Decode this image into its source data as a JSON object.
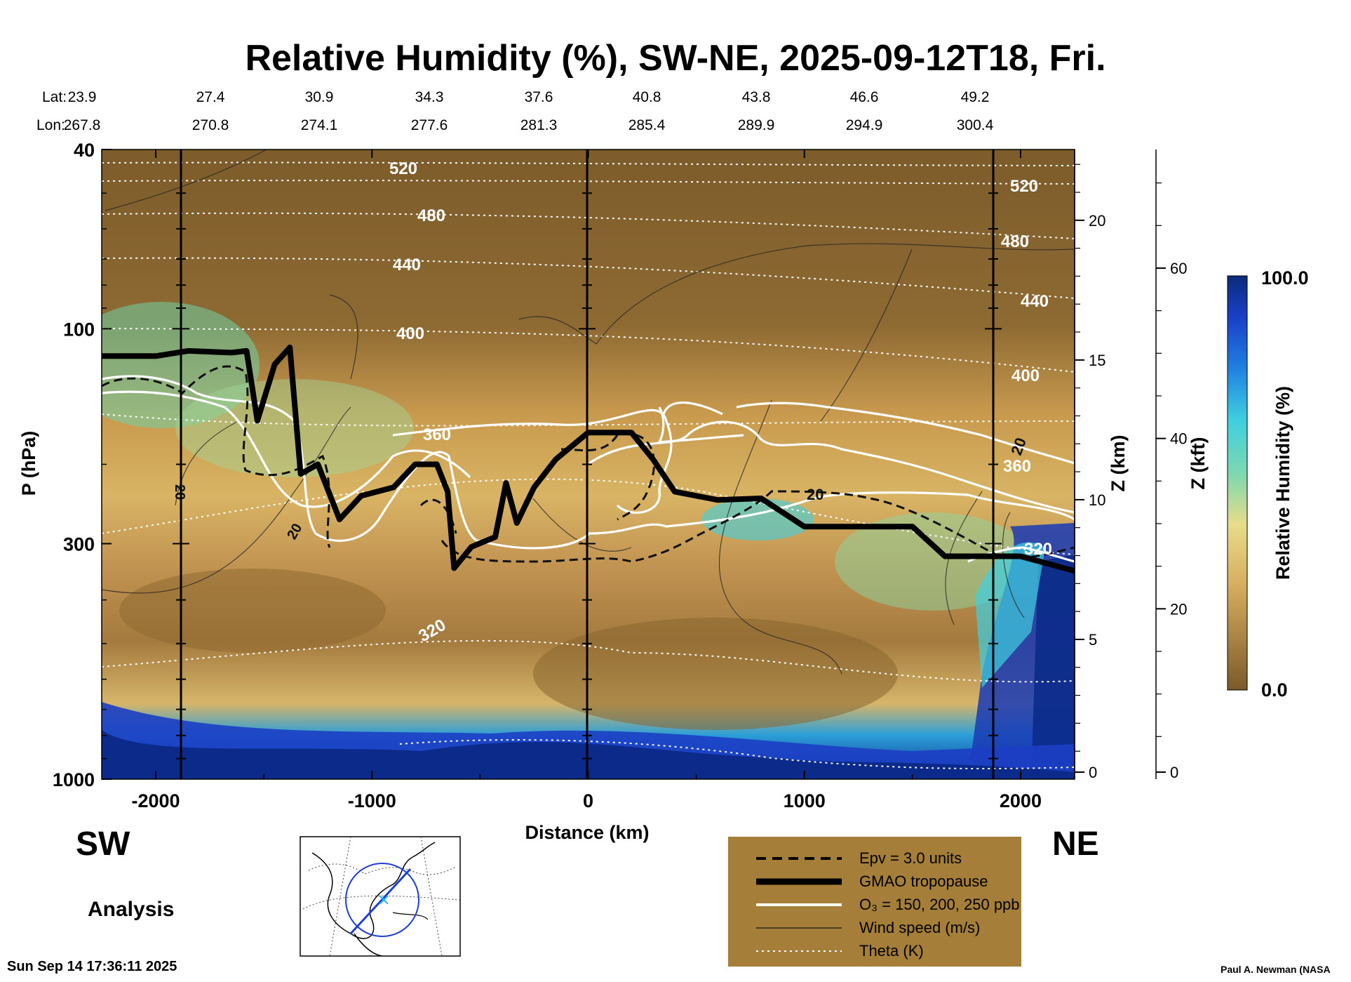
{
  "title": "Relative Humidity (%), SW-NE, 2025-09-12T18, Fri.",
  "header": {
    "lat_label": "Lat:",
    "lon_label": "Lon:",
    "lat": [
      "23.9",
      "27.4",
      "30.9",
      "34.3",
      "37.6",
      "40.8",
      "43.8",
      "46.6",
      "49.2"
    ],
    "lon": [
      "267.8",
      "270.8",
      "274.1",
      "277.6",
      "281.3",
      "285.4",
      "289.9",
      "294.9",
      "300.4"
    ]
  },
  "colors": {
    "dry": "#7b5a2a",
    "moist": "#e6c27a",
    "cyan": "#3fd0e0",
    "wet": "#0b2b8a",
    "legend_bg": "#a57f3a"
  },
  "chart_data": {
    "type": "heatmap",
    "xlabel": "Distance (km)",
    "ylabel": "P (hPa)",
    "xlim": [
      -2250,
      2250
    ],
    "ylim_hpa": [
      1000,
      40
    ],
    "log_y": true,
    "x_ticks": [
      "-2000",
      "-1000",
      "0",
      "1000",
      "2000"
    ],
    "x_tick_values": [
      -2000,
      -1000,
      0,
      1000,
      2000
    ],
    "y_ticks": [
      "40",
      "100",
      "300",
      "1000"
    ],
    "y_tick_values": [
      40,
      100,
      300,
      1000
    ],
    "z_km_label": "Z (km)",
    "z_km_ticks": [
      "0",
      "5",
      "10",
      "15",
      "20"
    ],
    "z_kft_label": "Z (kft)",
    "z_kft_ticks": [
      "0",
      "20",
      "40",
      "60"
    ],
    "colorbar": {
      "label": "Relative Humidity (%)",
      "min": "0.0",
      "max": "100.0"
    },
    "left_label": "SW",
    "right_label": "NE",
    "theta_levels": [
      "520",
      "480",
      "440",
      "400",
      "360",
      "320"
    ],
    "theta_levels_right": [
      "520",
      "480",
      "440",
      "400",
      "360",
      "320"
    ],
    "wind_labels": [
      "20",
      "20",
      "20",
      "20"
    ],
    "tropopause": [
      {
        "x": -2250,
        "p": 115
      },
      {
        "x": -2000,
        "p": 115
      },
      {
        "x": -1850,
        "p": 112
      },
      {
        "x": -1650,
        "p": 113
      },
      {
        "x": -1580,
        "p": 112
      },
      {
        "x": -1530,
        "p": 160
      },
      {
        "x": -1450,
        "p": 120
      },
      {
        "x": -1380,
        "p": 110
      },
      {
        "x": -1330,
        "p": 210
      },
      {
        "x": -1250,
        "p": 200
      },
      {
        "x": -1150,
        "p": 265
      },
      {
        "x": -1050,
        "p": 235
      },
      {
        "x": -900,
        "p": 225
      },
      {
        "x": -800,
        "p": 200
      },
      {
        "x": -700,
        "p": 200
      },
      {
        "x": -650,
        "p": 230
      },
      {
        "x": -620,
        "p": 340
      },
      {
        "x": -540,
        "p": 305
      },
      {
        "x": -430,
        "p": 290
      },
      {
        "x": -380,
        "p": 220
      },
      {
        "x": -330,
        "p": 270
      },
      {
        "x": -250,
        "p": 225
      },
      {
        "x": -150,
        "p": 195
      },
      {
        "x": -50,
        "p": 178
      },
      {
        "x": 0,
        "p": 170
      },
      {
        "x": 200,
        "p": 170
      },
      {
        "x": 300,
        "p": 195
      },
      {
        "x": 400,
        "p": 230
      },
      {
        "x": 600,
        "p": 240
      },
      {
        "x": 800,
        "p": 238
      },
      {
        "x": 1000,
        "p": 275
      },
      {
        "x": 1500,
        "p": 275
      },
      {
        "x": 1650,
        "p": 320
      },
      {
        "x": 2000,
        "p": 320
      },
      {
        "x": 2250,
        "p": 345
      }
    ],
    "legend": [
      "Epv = 3.0 units",
      "GMAO tropopause",
      "O₃ = 150, 200, 250 ppb",
      "Wind speed (m/s)",
      "Theta (K)"
    ],
    "product": "Analysis",
    "timestamp": "Sun Sep 14 17:36:11 2025",
    "credit": "Paul A. Newman (NASA"
  }
}
